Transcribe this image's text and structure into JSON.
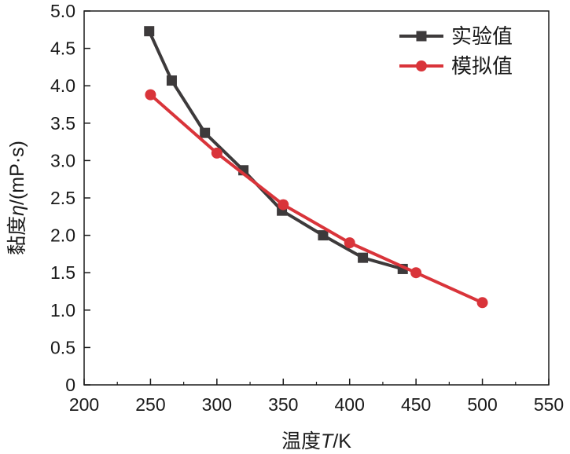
{
  "chart_data": {
    "type": "line",
    "title": "",
    "xlabel": {
      "prefix": "温度",
      "var": "T",
      "suffix": "/K"
    },
    "ylabel": {
      "prefix": "黏度",
      "var": "η",
      "suffix": "/(mP·s)"
    },
    "xlim": [
      200,
      550
    ],
    "ylim": [
      0,
      5.0
    ],
    "xticks": [
      200,
      250,
      300,
      350,
      400,
      450,
      500,
      550
    ],
    "xtick_labels": [
      "200",
      "250",
      "300",
      "350",
      "400",
      "450",
      "500",
      "550"
    ],
    "yticks": [
      0,
      0.5,
      1.0,
      1.5,
      2.0,
      2.5,
      3.0,
      3.5,
      4.0,
      4.5,
      5.0
    ],
    "ytick_labels": [
      "0",
      "0.5",
      "1.0",
      "1.5",
      "2.0",
      "2.5",
      "3.0",
      "3.5",
      "4.0",
      "4.5",
      "5.0"
    ],
    "grid": false,
    "legend_position": "top-right",
    "series": [
      {
        "name": "实验值",
        "color": "#3d3a3b",
        "marker": "square",
        "x": [
          249,
          266,
          291,
          320,
          349,
          380,
          410,
          440
        ],
        "y": [
          4.73,
          4.07,
          3.37,
          2.87,
          2.33,
          2.0,
          1.7,
          1.55
        ]
      },
      {
        "name": "模拟值",
        "color": "#d9343a",
        "marker": "circle",
        "x": [
          250,
          300,
          350,
          400,
          450,
          500
        ],
        "y": [
          3.88,
          3.1,
          2.41,
          1.9,
          1.5,
          1.1
        ]
      }
    ]
  }
}
